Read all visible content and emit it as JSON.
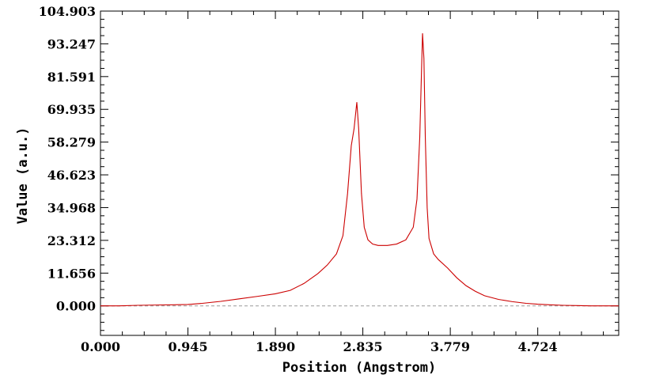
{
  "chart_data": {
    "type": "line",
    "xlabel": "Position (Angstrom)",
    "ylabel": "Value (a.u.)",
    "xlim": [
      0.0,
      5.6
    ],
    "ylim": [
      -10.5,
      104.903
    ],
    "x_ticks": [
      "0.000",
      "0.945",
      "1.890",
      "2.835",
      "3.779",
      "4.724"
    ],
    "x_tick_values": [
      0.0,
      0.945,
      1.89,
      2.835,
      3.779,
      4.724
    ],
    "y_ticks": [
      "0.000",
      "11.656",
      "23.312",
      "34.968",
      "46.623",
      "58.279",
      "69.935",
      "81.591",
      "93.247",
      "104.903"
    ],
    "y_tick_values": [
      0.0,
      11.656,
      23.312,
      34.968,
      46.623,
      58.279,
      69.935,
      81.591,
      93.247,
      104.903
    ],
    "series": [
      {
        "color": "#cc0000",
        "x": [
          0.0,
          0.2,
          0.4,
          0.6,
          0.8,
          0.945,
          1.1,
          1.3,
          1.5,
          1.7,
          1.89,
          2.05,
          2.2,
          2.35,
          2.45,
          2.55,
          2.62,
          2.67,
          2.71,
          2.74,
          2.77,
          2.79,
          2.82,
          2.85,
          2.89,
          2.94,
          3.0,
          3.1,
          3.2,
          3.3,
          3.38,
          3.42,
          3.45,
          3.47,
          3.48,
          3.495,
          3.51,
          3.53,
          3.55,
          3.6,
          3.65,
          3.75,
          3.85,
          3.95,
          4.05,
          4.15,
          4.3,
          4.45,
          4.6,
          4.724,
          4.85,
          5.0,
          5.15,
          5.3,
          5.45,
          5.6
        ],
        "y": [
          0.0,
          0.0,
          0.2,
          0.3,
          0.4,
          0.5,
          0.9,
          1.6,
          2.5,
          3.4,
          4.3,
          5.5,
          8.0,
          11.5,
          14.5,
          18.5,
          25.0,
          40.0,
          57.0,
          63.0,
          72.5,
          63.0,
          40.0,
          28.0,
          23.5,
          22.0,
          21.5,
          21.5,
          22.0,
          23.5,
          28.0,
          38.0,
          60.0,
          85.0,
          97.0,
          88.0,
          60.0,
          35.0,
          24.0,
          18.5,
          16.5,
          13.5,
          10.0,
          7.2,
          5.2,
          3.6,
          2.3,
          1.5,
          0.9,
          0.6,
          0.4,
          0.2,
          0.1,
          0.0,
          0.0,
          0.0
        ]
      }
    ],
    "zero_line": {
      "y": 0.0,
      "style": "dashed",
      "color": "#999999"
    },
    "grid": false,
    "legend": "none"
  }
}
